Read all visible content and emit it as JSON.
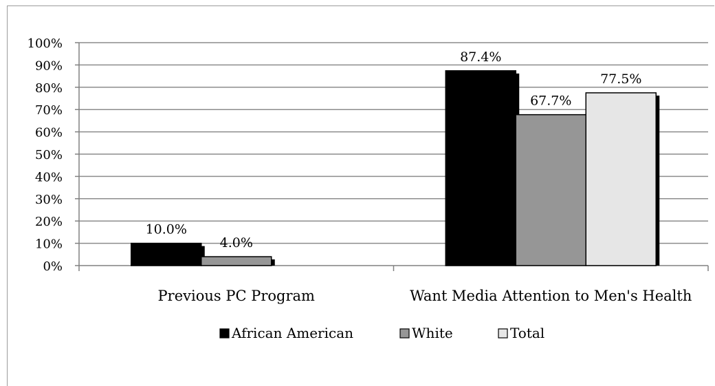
{
  "chart_data": {
    "type": "bar",
    "categories": [
      "Previous PC Program",
      "Want Media Attention to Men's Health"
    ],
    "series": [
      {
        "name": "African American",
        "values": [
          10.0,
          87.4
        ],
        "labels": [
          "10.0%",
          "87.4%"
        ],
        "color": "#000000"
      },
      {
        "name": "White",
        "values": [
          4.0,
          67.7
        ],
        "labels": [
          "4.0%",
          "67.7%"
        ],
        "color": "#969696"
      },
      {
        "name": "Total",
        "values": [
          null,
          77.5
        ],
        "labels": [
          null,
          "77.5%"
        ],
        "color": "#e6e6e6"
      }
    ],
    "ylim": [
      0,
      100
    ],
    "yticks": [
      "0%",
      "10%",
      "20%",
      "30%",
      "40%",
      "50%",
      "60%",
      "70%",
      "80%",
      "90%",
      "100%"
    ],
    "grid": true,
    "legend": "bottom",
    "title": "",
    "xlabel": "",
    "ylabel": ""
  }
}
